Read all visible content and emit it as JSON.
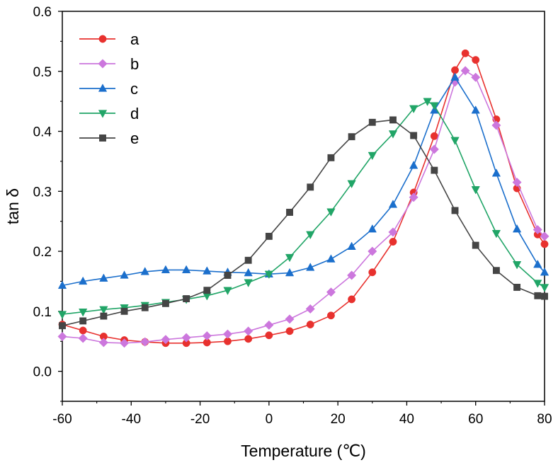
{
  "chart_data": {
    "type": "line",
    "title": "",
    "xlabel": "Temperature (℃)",
    "ylabel": "tan δ",
    "xlim": [
      -60,
      80
    ],
    "ylim": [
      -0.05,
      0.6
    ],
    "xticks": [
      -60,
      -40,
      -20,
      0,
      20,
      40,
      60,
      80
    ],
    "yticks": [
      0.0,
      0.1,
      0.2,
      0.3,
      0.4,
      0.5,
      0.6
    ],
    "xtick_labels": [
      "-60",
      "-40",
      "-20",
      "0",
      "20",
      "40",
      "60",
      "80"
    ],
    "ytick_labels": [
      "0.0",
      "0.1",
      "0.2",
      "0.3",
      "0.4",
      "0.5",
      "0.6"
    ],
    "grid": false,
    "legend_position": "top-left",
    "series": [
      {
        "name": "a",
        "color": "#e8312e",
        "marker": "circle",
        "x": [
          -60,
          -54,
          -48,
          -42,
          -36,
          -30,
          -24,
          -18,
          -12,
          -6,
          0,
          6,
          12,
          18,
          24,
          30,
          36,
          42,
          48,
          54,
          57,
          60,
          66,
          72,
          78,
          80
        ],
        "y": [
          0.078,
          0.068,
          0.058,
          0.052,
          0.049,
          0.047,
          0.047,
          0.048,
          0.05,
          0.054,
          0.06,
          0.067,
          0.078,
          0.093,
          0.12,
          0.165,
          0.216,
          0.298,
          0.392,
          0.502,
          0.53,
          0.519,
          0.42,
          0.305,
          0.228,
          0.212
        ]
      },
      {
        "name": "b",
        "color": "#cc77dd",
        "marker": "diamond",
        "x": [
          -60,
          -54,
          -48,
          -42,
          -36,
          -30,
          -24,
          -18,
          -12,
          -6,
          0,
          6,
          12,
          18,
          24,
          30,
          36,
          42,
          48,
          54,
          57,
          60,
          66,
          72,
          78,
          80
        ],
        "y": [
          0.058,
          0.055,
          0.048,
          0.047,
          0.049,
          0.053,
          0.056,
          0.059,
          0.062,
          0.067,
          0.077,
          0.087,
          0.104,
          0.132,
          0.16,
          0.2,
          0.232,
          0.29,
          0.37,
          0.482,
          0.501,
          0.49,
          0.41,
          0.315,
          0.236,
          0.225
        ]
      },
      {
        "name": "c",
        "color": "#1b6fcc",
        "marker": "triangle-up",
        "x": [
          -60,
          -54,
          -48,
          -42,
          -36,
          -30,
          -24,
          -18,
          -12,
          -6,
          0,
          6,
          12,
          18,
          24,
          30,
          36,
          42,
          48,
          54,
          60,
          66,
          72,
          78,
          80
        ],
        "y": [
          0.143,
          0.15,
          0.155,
          0.16,
          0.166,
          0.169,
          0.169,
          0.167,
          0.165,
          0.164,
          0.162,
          0.164,
          0.173,
          0.187,
          0.208,
          0.237,
          0.278,
          0.343,
          0.435,
          0.49,
          0.435,
          0.33,
          0.237,
          0.178,
          0.165
        ]
      },
      {
        "name": "d",
        "color": "#21a567",
        "marker": "triangle-down",
        "x": [
          -60,
          -54,
          -48,
          -42,
          -36,
          -30,
          -24,
          -18,
          -12,
          -6,
          0,
          6,
          12,
          18,
          24,
          30,
          36,
          42,
          46,
          48,
          54,
          60,
          66,
          72,
          78,
          80
        ],
        "y": [
          0.095,
          0.099,
          0.103,
          0.106,
          0.11,
          0.115,
          0.12,
          0.126,
          0.135,
          0.148,
          0.162,
          0.19,
          0.228,
          0.266,
          0.313,
          0.36,
          0.396,
          0.438,
          0.45,
          0.443,
          0.385,
          0.303,
          0.23,
          0.178,
          0.147,
          0.14
        ]
      },
      {
        "name": "e",
        "color": "#454545",
        "marker": "square",
        "x": [
          -60,
          -54,
          -48,
          -42,
          -36,
          -30,
          -24,
          -18,
          -12,
          -6,
          0,
          6,
          12,
          18,
          24,
          30,
          36,
          42,
          48,
          54,
          60,
          66,
          72,
          78,
          80
        ],
        "y": [
          0.076,
          0.084,
          0.092,
          0.1,
          0.106,
          0.113,
          0.121,
          0.135,
          0.16,
          0.185,
          0.225,
          0.265,
          0.307,
          0.356,
          0.391,
          0.415,
          0.419,
          0.393,
          0.335,
          0.268,
          0.21,
          0.168,
          0.14,
          0.126,
          0.125
        ]
      }
    ]
  }
}
